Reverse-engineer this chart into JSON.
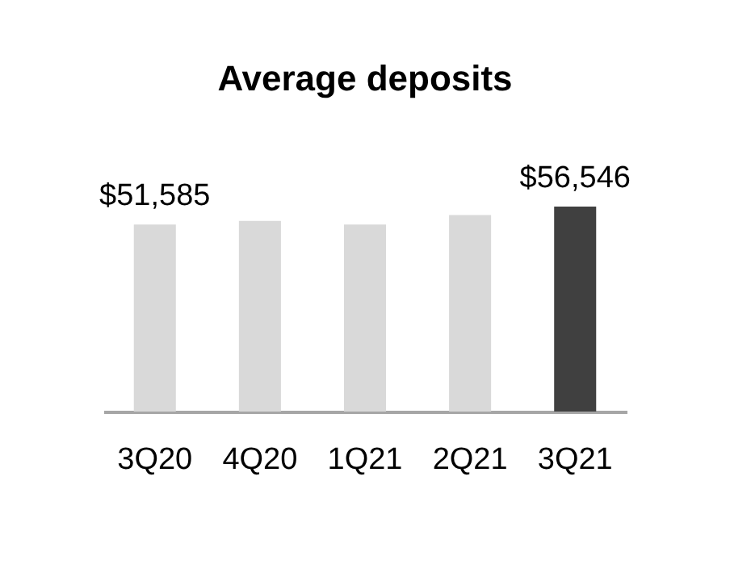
{
  "chart_data": {
    "type": "bar",
    "title": "Average deposits",
    "categories": [
      "3Q20",
      "4Q20",
      "1Q21",
      "2Q21",
      "3Q21"
    ],
    "values": [
      51585,
      52600,
      51600,
      54200,
      56546
    ],
    "colors": [
      "#d9d9d9",
      "#d9d9d9",
      "#d9d9d9",
      "#d9d9d9",
      "#404040"
    ],
    "value_labels": [
      "$51,585",
      null,
      null,
      null,
      "$56,546"
    ]
  }
}
